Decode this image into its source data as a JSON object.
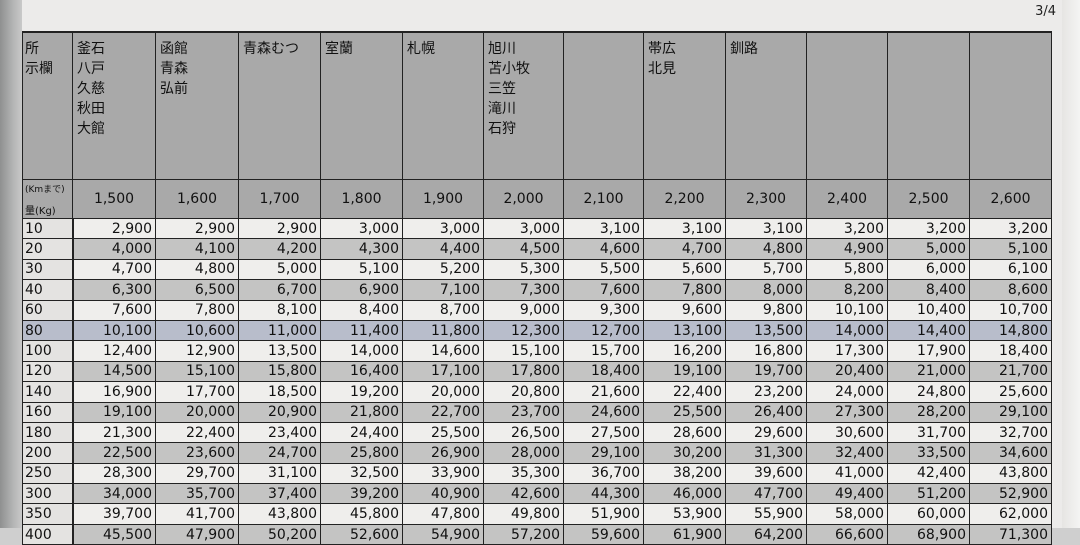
{
  "page_number": "3/4",
  "header": {
    "corner_label": "所\n示欄",
    "km_label": "(Kmまで)",
    "kg_label": "量(Kg)",
    "cities": [
      "釜石\n八戸\n久慈\n秋田\n大館",
      "函館\n青森\n弘前",
      "青森むつ",
      "室蘭",
      "札幌",
      "旭川\n苫小牧\n三笠\n滝川\n石狩",
      "",
      "帯広\n北見",
      "釧路",
      "",
      "",
      ""
    ],
    "distances": [
      "1,500",
      "1,600",
      "1,700",
      "1,800",
      "1,900",
      "2,000",
      "2,100",
      "2,200",
      "2,300",
      "2,400",
      "2,500",
      "2,600"
    ]
  },
  "highlighted_row": "80",
  "rows": [
    {
      "kg": "10",
      "values": [
        "2,900",
        "2,900",
        "2,900",
        "3,000",
        "3,000",
        "3,000",
        "3,100",
        "3,100",
        "3,100",
        "3,200",
        "3,200",
        "3,200"
      ]
    },
    {
      "kg": "20",
      "values": [
        "4,000",
        "4,100",
        "4,200",
        "4,300",
        "4,400",
        "4,500",
        "4,600",
        "4,700",
        "4,800",
        "4,900",
        "5,000",
        "5,100"
      ]
    },
    {
      "kg": "30",
      "values": [
        "4,700",
        "4,800",
        "5,000",
        "5,100",
        "5,200",
        "5,300",
        "5,500",
        "5,600",
        "5,700",
        "5,800",
        "6,000",
        "6,100"
      ]
    },
    {
      "kg": "40",
      "values": [
        "6,300",
        "6,500",
        "6,700",
        "6,900",
        "7,100",
        "7,300",
        "7,600",
        "7,800",
        "8,000",
        "8,200",
        "8,400",
        "8,600"
      ]
    },
    {
      "kg": "60",
      "values": [
        "7,600",
        "7,800",
        "8,100",
        "8,400",
        "8,700",
        "9,000",
        "9,300",
        "9,600",
        "9,800",
        "10,100",
        "10,400",
        "10,700"
      ]
    },
    {
      "kg": "80",
      "values": [
        "10,100",
        "10,600",
        "11,000",
        "11,400",
        "11,800",
        "12,300",
        "12,700",
        "13,100",
        "13,500",
        "14,000",
        "14,400",
        "14,800"
      ]
    },
    {
      "kg": "100",
      "values": [
        "12,400",
        "12,900",
        "13,500",
        "14,000",
        "14,600",
        "15,100",
        "15,700",
        "16,200",
        "16,800",
        "17,300",
        "17,900",
        "18,400"
      ]
    },
    {
      "kg": "120",
      "values": [
        "14,500",
        "15,100",
        "15,800",
        "16,400",
        "17,100",
        "17,800",
        "18,400",
        "19,100",
        "19,700",
        "20,400",
        "21,000",
        "21,700"
      ]
    },
    {
      "kg": "140",
      "values": [
        "16,900",
        "17,700",
        "18,500",
        "19,200",
        "20,000",
        "20,800",
        "21,600",
        "22,400",
        "23,200",
        "24,000",
        "24,800",
        "25,600"
      ]
    },
    {
      "kg": "160",
      "values": [
        "19,100",
        "20,000",
        "20,900",
        "21,800",
        "22,700",
        "23,700",
        "24,600",
        "25,500",
        "26,400",
        "27,300",
        "28,200",
        "29,100"
      ]
    },
    {
      "kg": "180",
      "values": [
        "21,300",
        "22,400",
        "23,400",
        "24,400",
        "25,500",
        "26,500",
        "27,500",
        "28,600",
        "29,600",
        "30,600",
        "31,700",
        "32,700"
      ]
    },
    {
      "kg": "200",
      "values": [
        "22,500",
        "23,600",
        "24,700",
        "25,800",
        "26,900",
        "28,000",
        "29,100",
        "30,200",
        "31,300",
        "32,400",
        "33,500",
        "34,600"
      ]
    },
    {
      "kg": "250",
      "values": [
        "28,300",
        "29,700",
        "31,100",
        "32,500",
        "33,900",
        "35,300",
        "36,700",
        "38,200",
        "39,600",
        "41,000",
        "42,400",
        "43,800"
      ]
    },
    {
      "kg": "300",
      "values": [
        "34,000",
        "35,700",
        "37,400",
        "39,200",
        "40,900",
        "42,600",
        "44,300",
        "46,000",
        "47,700",
        "49,400",
        "51,200",
        "52,900"
      ]
    },
    {
      "kg": "350",
      "values": [
        "39,700",
        "41,700",
        "43,800",
        "45,800",
        "47,800",
        "49,800",
        "51,900",
        "53,900",
        "55,900",
        "58,000",
        "60,000",
        "62,000"
      ]
    },
    {
      "kg": "400",
      "values": [
        "45,500",
        "47,900",
        "50,200",
        "52,600",
        "54,900",
        "57,200",
        "59,600",
        "61,900",
        "64,200",
        "66,600",
        "68,900",
        "71,300"
      ]
    }
  ]
}
